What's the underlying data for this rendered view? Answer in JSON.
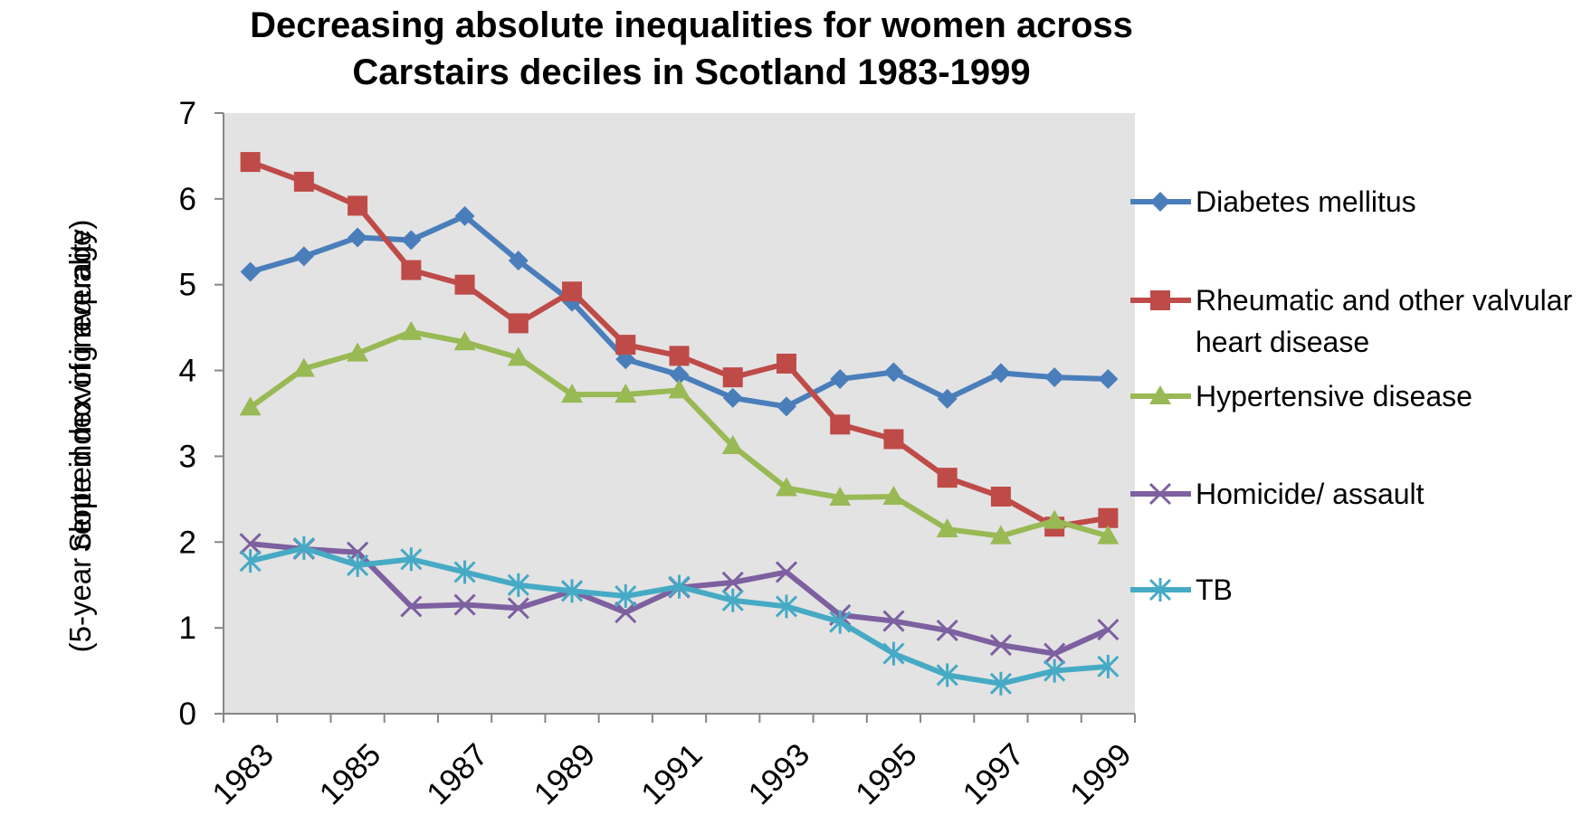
{
  "chart_data": {
    "type": "line",
    "title": "Decreasing absolute inequalities for women across Carstairs deciles in Scotland 1983-1999",
    "ylabel": [
      "Slope index of inequality",
      "(5-year centred moving average)"
    ],
    "categories": [
      1983,
      null,
      1985,
      null,
      1987,
      null,
      1989,
      null,
      1991,
      null,
      1993,
      null,
      1995,
      null,
      1997,
      null,
      1999
    ],
    "ylim": [
      0,
      7
    ],
    "yticks": [
      0,
      1,
      2,
      3,
      4,
      5,
      6,
      7
    ],
    "series": [
      {
        "name": "Diabetes mellitus",
        "color": "#4a7ebb",
        "marker": "diamond",
        "values": [
          5.15,
          5.33,
          5.55,
          5.52,
          5.8,
          5.28,
          4.8,
          4.13,
          3.95,
          3.68,
          3.58,
          3.9,
          3.98,
          3.67,
          3.97,
          3.92,
          3.9
        ]
      },
      {
        "name": "Rheumatic and other valvular heart disease",
        "color": "#be4b48",
        "marker": "square",
        "values": [
          6.43,
          6.2,
          5.92,
          5.17,
          5.0,
          4.55,
          4.92,
          4.3,
          4.17,
          3.92,
          4.08,
          3.37,
          3.2,
          2.75,
          2.53,
          2.18,
          2.28
        ]
      },
      {
        "name": "Hypertensive disease",
        "color": "#98b954",
        "marker": "triangle",
        "values": [
          3.57,
          4.02,
          4.2,
          4.45,
          4.33,
          4.15,
          3.72,
          3.72,
          3.77,
          3.12,
          2.63,
          2.52,
          2.53,
          2.15,
          2.07,
          2.25,
          2.07
        ]
      },
      {
        "name": "Homicide/ assault",
        "color": "#7d60a0",
        "marker": "x",
        "values": [
          1.98,
          1.92,
          1.88,
          1.25,
          1.27,
          1.23,
          1.43,
          1.18,
          1.47,
          1.53,
          1.65,
          1.15,
          1.08,
          0.97,
          0.8,
          0.7,
          0.98
        ]
      },
      {
        "name": "TB",
        "color": "#46aac5",
        "marker": "star",
        "values": [
          1.78,
          1.93,
          1.73,
          1.8,
          1.65,
          1.5,
          1.43,
          1.37,
          1.48,
          1.32,
          1.25,
          1.07,
          0.7,
          0.45,
          0.35,
          0.5,
          0.55
        ]
      }
    ]
  }
}
